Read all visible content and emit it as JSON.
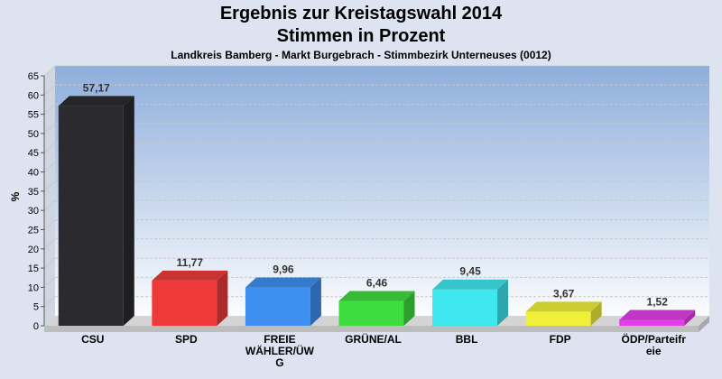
{
  "chart_data": {
    "type": "bar",
    "title": "Ergebnis zur Kreistagswahl 2014",
    "title2": "Stimmen in Prozent",
    "subtitle": "Landkreis Bamberg - Markt Burgebrach - Stimmbezirk Unterneuses (0012)",
    "ylabel": "%",
    "ylim": [
      0,
      65
    ],
    "yticks": [
      0,
      5,
      10,
      15,
      20,
      25,
      30,
      35,
      40,
      45,
      50,
      55,
      60,
      65
    ],
    "grid": true,
    "categories": [
      "CSU",
      "SPD",
      "FREIE WÄHLER/ÜWG",
      "GRÜNE/AL",
      "BBL",
      "FDP",
      "ÖDP/Parteifreie"
    ],
    "category_lines": [
      [
        "CSU"
      ],
      [
        "SPD"
      ],
      [
        "FREIE",
        "WÄHLER/ÜW",
        "G"
      ],
      [
        "GRÜNE/AL"
      ],
      [
        "BBL"
      ],
      [
        "FDP"
      ],
      [
        "ÖDP/Parteifr",
        "eie"
      ]
    ],
    "values": [
      57.17,
      11.77,
      9.96,
      6.46,
      9.45,
      3.67,
      1.52
    ],
    "value_labels": [
      "57,17",
      "11,77",
      "9,96",
      "6,46",
      "9,45",
      "3,67",
      "1,52"
    ],
    "colors": [
      "#2b2b2f",
      "#f03a3a",
      "#3f8ff0",
      "#3fdc3f",
      "#3fe8ee",
      "#f0f03a",
      "#e23fe8"
    ]
  }
}
